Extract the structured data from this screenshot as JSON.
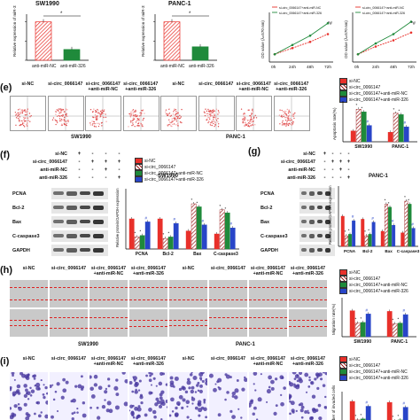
{
  "colors": {
    "red": "#e8302a",
    "green": "#1f8a3b",
    "blue": "#2845c8",
    "pink": "#f07a8c",
    "darkred": "#9b1c1c"
  },
  "top": {
    "sw_title": "SW1990",
    "panc_title": "PANC-1",
    "ylabel": "Relative expression of miR-326",
    "cat_nc": "anti-miR-NC",
    "cat_326": "anti-miR-326",
    "star": "*",
    "od_ylabel": "OD value (λ=570 nm)",
    "od_legend": [
      "si-circ_0066147+anti-miR-NC",
      "si-circ_0066147+anti-miR-326"
    ],
    "od_x": [
      "0h",
      "24h",
      "48h",
      "72h"
    ],
    "star_hash": "*#"
  },
  "e": {
    "label": "(e)",
    "cols": [
      "si-NC",
      "si-circ_0066147",
      "si-circ_0066147\n+anti-miR-NC",
      "si-circ_0066147\n+anti-miR-326",
      "si-NC",
      "si-circ_0066147",
      "si-circ_0066147\n+anti-miR-NC",
      "si-circ_0066147\n+anti-miR-326"
    ],
    "group1": "SW1990",
    "group2": "PANC-1",
    "legend": [
      "si-NC",
      "si-circ_0066147",
      "si-circ_0066147+anti-miR-NC",
      "si-circ_0066147+anti-miR-326"
    ],
    "bar_ylabel": "Apoptosis rate(%)",
    "bar_x": [
      "SW1990",
      "PANC-1"
    ]
  },
  "f": {
    "label": "(f)",
    "rows": [
      "si-NC",
      "si-circ_0066147",
      "anti-miR-NC",
      "anti-miR-326"
    ],
    "signs": [
      [
        "+",
        "-",
        "-",
        "-"
      ],
      [
        "-",
        "+",
        "+",
        "+"
      ],
      [
        "-",
        "-",
        "+",
        "-"
      ],
      [
        "-",
        "-",
        "-",
        "+"
      ]
    ],
    "proteins": [
      "PCNA",
      "Bcl-2",
      "Bax",
      "C-caspase3",
      "GAPDH"
    ],
    "chart_title": "SW1990",
    "ylabel": "Relative protein/GAPDH expression",
    "x": [
      "PCNA",
      "Bcl-2",
      "Bax",
      "C-caspase3"
    ]
  },
  "g": {
    "label": "(g)",
    "rows": [
      "si-NC",
      "si-circ_0066147",
      "anti-miR-NC",
      "anti-miR-326"
    ],
    "signs": [
      [
        "+",
        "-",
        "-",
        "-"
      ],
      [
        "-",
        "+",
        "+",
        "+"
      ],
      [
        "-",
        "-",
        "+",
        "-"
      ],
      [
        "-",
        "-",
        "-",
        "+"
      ]
    ],
    "proteins": [
      "PCNA",
      "Bcl-2",
      "Bax",
      "C-caspase3",
      "GAPDH"
    ],
    "chart_title": "PANC-1",
    "ylabel": "Relative protein/GAPDH expression",
    "x": [
      "PCNA",
      "Bcl-2",
      "Bax",
      "C-caspase3"
    ]
  },
  "h": {
    "label": "(h)",
    "cols": [
      "si-NC",
      "si-circ_0066147",
      "si-circ_0066147\n+anti-miR-NC",
      "si-circ_0066147\n+anti-miR-326",
      "si-NC",
      "si-circ_0066147",
      "si-circ_0066147\n+anti-miR-NC",
      "si-circ_0066147\n+anti-miR-326"
    ],
    "group1": "SW1990",
    "group2": "PANC-1",
    "legend": [
      "si-NC",
      "si-circ_0066147",
      "si-circ_0066147+anti-miR-NC",
      "si-circ_0066147+anti-miR-326"
    ],
    "bar_ylabel": "Migration rate(%)",
    "bar_x": [
      "SW1990",
      "PANC-1"
    ]
  },
  "i": {
    "label": "(i)",
    "cols": [
      "si-NC",
      "si-circ_0066147",
      "si-circ_0066147\n+anti-miR-NC",
      "si-circ_0066147\n+anti-miR-326",
      "si-NC",
      "si-circ_0066147",
      "si-circ_0066147\n+anti-miR-NC",
      "si-circ_0066147\n+anti-miR-326"
    ],
    "legend": [
      "si-NC",
      "si-circ_0066147",
      "si-circ_0066147+anti-miR-NC",
      "si-circ_0066147+anti-miR-326"
    ],
    "bar_ylabel": "Number of invaded cells"
  },
  "chart_data": [
    {
      "type": "bar",
      "title": "SW1990",
      "categories": [
        "anti-miR-NC",
        "anti-miR-326"
      ],
      "values": [
        1.0,
        0.28
      ],
      "ylim": [
        0,
        1.2
      ]
    },
    {
      "type": "bar",
      "title": "PANC-1",
      "categories": [
        "anti-miR-NC",
        "anti-miR-326"
      ],
      "values": [
        1.0,
        0.35
      ],
      "ylim": [
        0,
        1.2
      ]
    },
    {
      "type": "line",
      "x": [
        "0h",
        "24h",
        "48h",
        "72h"
      ],
      "series": [
        {
          "name": "si-circ_0066147+anti-miR-NC",
          "values": [
            0.25,
            0.45,
            0.65,
            0.9
          ]
        },
        {
          "name": "si-circ_0066147+anti-miR-326",
          "values": [
            0.25,
            0.55,
            0.85,
            1.25
          ]
        }
      ],
      "ylim": [
        0,
        1.6
      ]
    },
    {
      "type": "line",
      "x": [
        "0h",
        "24h",
        "48h",
        "72h"
      ],
      "series": [
        {
          "name": "si-circ_0066147+anti-miR-NC",
          "values": [
            0.25,
            0.5,
            0.7,
            0.95
          ]
        },
        {
          "name": "si-circ_0066147+anti-miR-326",
          "values": [
            0.25,
            0.6,
            0.9,
            1.3
          ]
        }
      ],
      "ylim": [
        0,
        1.6
      ]
    },
    {
      "type": "bar",
      "categories": [
        "SW1990",
        "PANC-1"
      ],
      "series": [
        {
          "name": "si-NC",
          "values": [
            8,
            7
          ]
        },
        {
          "name": "si-circ_0066147",
          "values": [
            24,
            21
          ]
        },
        {
          "name": "si-circ_0066147+anti-miR-NC",
          "values": [
            22,
            20
          ]
        },
        {
          "name": "si-circ_0066147+anti-miR-326",
          "values": [
            12,
            11
          ]
        }
      ],
      "ylim": [
        0,
        30
      ]
    },
    {
      "type": "bar",
      "title": "SW1990",
      "categories": [
        "PCNA",
        "Bcl-2",
        "Bax",
        "C-caspase3"
      ],
      "series": [
        {
          "name": "si-NC",
          "values": [
            1.0,
            1.0,
            0.6,
            0.5
          ]
        },
        {
          "name": "si-circ_0066147",
          "values": [
            0.4,
            0.35,
            1.5,
            1.3
          ]
        },
        {
          "name": "si-circ_0066147+anti-miR-NC",
          "values": [
            0.45,
            0.4,
            1.4,
            1.2
          ]
        },
        {
          "name": "si-circ_0066147+anti-miR-326",
          "values": [
            0.9,
            0.85,
            0.8,
            0.7
          ]
        }
      ],
      "ylim": [
        0,
        2.0
      ]
    },
    {
      "type": "bar",
      "title": "PANC-1",
      "categories": [
        "PCNA",
        "Bcl-2",
        "Bax",
        "C-caspase3"
      ],
      "series": [
        {
          "name": "si-NC",
          "values": [
            1.0,
            0.9,
            0.5,
            0.45
          ]
        },
        {
          "name": "si-circ_0066147",
          "values": [
            0.35,
            0.35,
            1.4,
            1.5
          ]
        },
        {
          "name": "si-circ_0066147+anti-miR-NC",
          "values": [
            0.4,
            0.4,
            1.3,
            1.4
          ]
        },
        {
          "name": "si-circ_0066147+anti-miR-326",
          "values": [
            0.85,
            0.8,
            0.7,
            0.6
          ]
        }
      ],
      "ylim": [
        0,
        2.0
      ]
    },
    {
      "type": "bar",
      "categories": [
        "SW1990",
        "PANC-1"
      ],
      "series": [
        {
          "name": "si-NC",
          "values": [
            80,
            78
          ]
        },
        {
          "name": "si-circ_0066147",
          "values": [
            42,
            40
          ]
        },
        {
          "name": "si-circ_0066147+anti-miR-NC",
          "values": [
            44,
            42
          ]
        },
        {
          "name": "si-circ_0066147+anti-miR-326",
          "values": [
            70,
            68
          ]
        }
      ],
      "ylim": [
        0,
        120
      ]
    },
    {
      "type": "bar",
      "categories": [
        "SW1990",
        "PANC-1"
      ],
      "series": [
        {
          "name": "si-NC",
          "values": [
            300,
            290
          ]
        },
        {
          "name": "si-circ_0066147",
          "values": [
            110,
            100
          ]
        },
        {
          "name": "si-circ_0066147+anti-miR-NC",
          "values": [
            120,
            110
          ]
        },
        {
          "name": "si-circ_0066147+anti-miR-326",
          "values": [
            250,
            240
          ]
        }
      ],
      "ylim": [
        0,
        400
      ]
    }
  ]
}
